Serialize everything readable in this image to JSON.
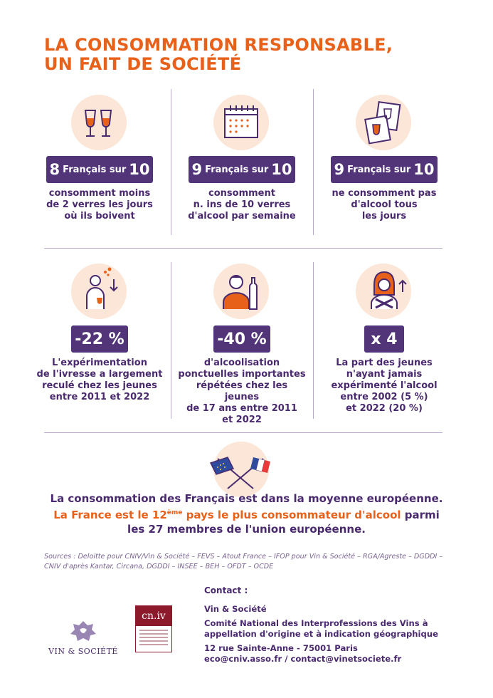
{
  "title": {
    "line1": "LA CONSOMMATION RESPONSABLE,",
    "line2": "UN FAIT DE SOCIÉTÉ"
  },
  "stats_row1": [
    {
      "icon": "wine-glasses-icon",
      "big": "8",
      "mid": "Français sur",
      "big2": "10",
      "desc": [
        "consomment moins",
        "de 2 verres les jours",
        "où ils boivent"
      ]
    },
    {
      "icon": "calendar-icon",
      "big": "9",
      "mid": "Français sur",
      "big2": "10",
      "desc": [
        "consomment",
        "n. ins de 10 verres",
        "d'alcool par semaine"
      ]
    },
    {
      "icon": "calendar-no-wine-icon",
      "big": "9",
      "mid": "Français sur",
      "big2": "10",
      "desc": [
        "ne consomment pas",
        "d'alcool tous",
        "les jours"
      ]
    }
  ],
  "stats_row2": [
    {
      "icon": "drunk-person-icon",
      "value": "-22 %",
      "desc": [
        "L'expérimentation",
        "de l'ivresse a largement",
        "reculé chez les jeunes",
        "entre 2011 et 2022"
      ]
    },
    {
      "icon": "person-bottle-icon",
      "value": "-40 %",
      "desc": [
        "d'alcoolisation",
        "ponctuelles importantes",
        "répétées chez les jeunes",
        "de 17 ans entre 2011",
        "et 2022"
      ]
    },
    {
      "icon": "woman-refusing-icon",
      "value": "x 4",
      "desc": [
        "La part des jeunes",
        "n'ayant jamais",
        "expérimenté l'alcool",
        "entre 2002 (5 %)",
        "et 2022 (20 %)"
      ]
    }
  ],
  "europe": {
    "icon": "eu-france-flags-icon",
    "line1": "La consommation des Français est dans la moyenne européenne.",
    "line2_hl_a": "La France est le 12",
    "line2_sup": "ème",
    "line2_hl_b": " pays le plus consommateur d'alcool",
    "line2_rest": " parmi",
    "line3": "les 27 membres de l'union européenne."
  },
  "sources": {
    "line1": "Sources : Deloitte pour CNIV/Vin & Société – FEVS – Atout France – IFOP pour Vin & Société – RGA/Agreste – DGDDI –",
    "line2": "CNIV d'après Kantar, Circana, DGDDI – INSEE – BEH – OFDT – OCDE"
  },
  "contact": {
    "title": "Contact :",
    "org1": "Vin & Société",
    "org2_l1": "Comité National des Interprofessions des Vins à",
    "org2_l2": "appellation d'origine et à indication géographique",
    "address": "12 rue Sainte-Anne - 75001 Paris",
    "emails": "eco@cniv.asso.fr / contact@vinetsociete.fr"
  },
  "logos": {
    "vs_name": "VIN & SOCIÉTÉ",
    "cniv_name": "cn.iv"
  },
  "colors": {
    "orange": "#e8611a",
    "purple": "#523579",
    "peach": "#fbe6d8"
  }
}
